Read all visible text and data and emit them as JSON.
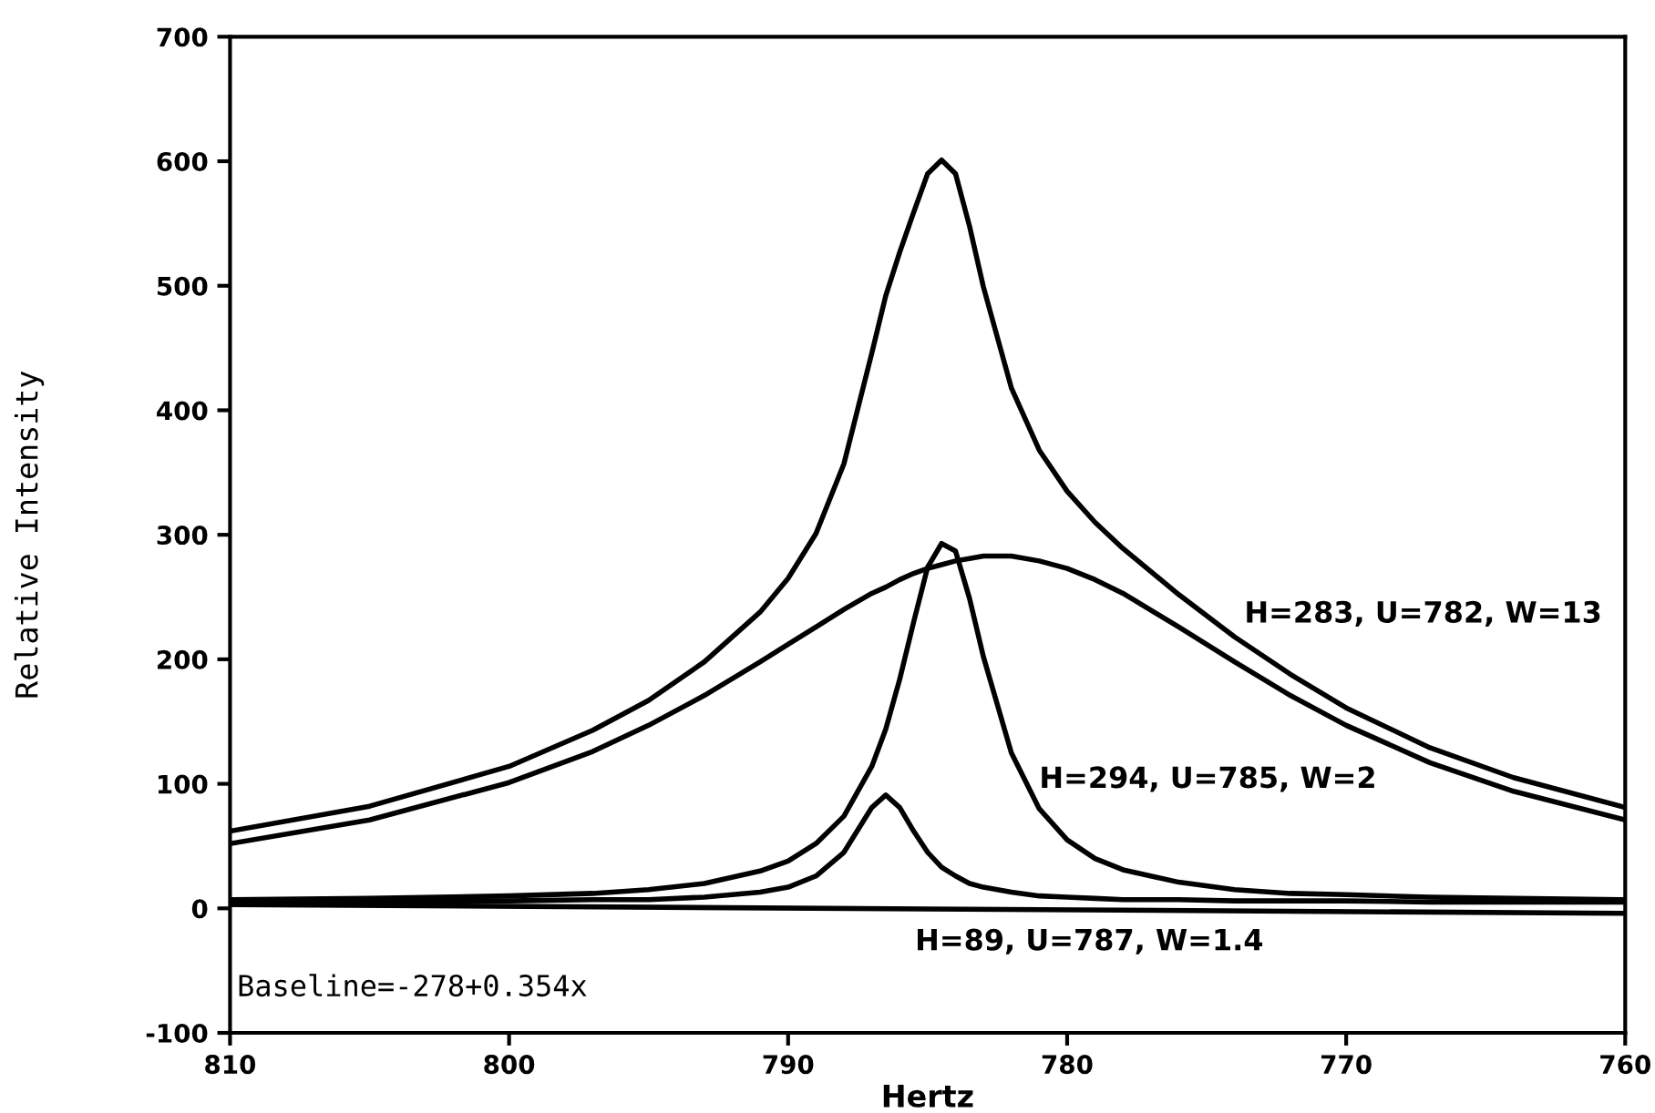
{
  "chart_data": {
    "type": "line",
    "xlabel": "Hertz",
    "ylabel": "Relative Intensity",
    "x": [
      810,
      805,
      800,
      797,
      795,
      793,
      791,
      790,
      789,
      788,
      787,
      786.5,
      786,
      785.5,
      785,
      784.5,
      784,
      783.5,
      783,
      782,
      781,
      780,
      779,
      778,
      776,
      774,
      772,
      770,
      767,
      764,
      760
    ],
    "series": [
      {
        "color": "#000000",
        "values": [
          62,
          82,
          114,
          143,
          167,
          198,
          238,
          265,
          301,
          357,
          446,
          492,
          527,
          559,
          590,
          601,
          590,
          548,
          499,
          418,
          368,
          335,
          310,
          289,
          252,
          218,
          188,
          161,
          129,
          105,
          81
        ]
      },
      {
        "color": "#000000",
        "values": [
          52,
          71,
          101,
          126,
          147,
          171,
          198,
          212,
          226,
          240,
          253,
          258,
          264,
          269,
          273,
          276,
          279,
          281,
          283,
          283,
          279,
          273,
          264,
          253,
          226,
          198,
          171,
          147,
          117,
          94,
          71
        ]
      },
      {
        "color": "#000000",
        "values": [
          7,
          8,
          10,
          12,
          15,
          20,
          30,
          38,
          52,
          74,
          114,
          144,
          184,
          230,
          274,
          293,
          287,
          249,
          202,
          125,
          80,
          55,
          40,
          31,
          21,
          15,
          12,
          11,
          9,
          8,
          7
        ]
      },
      {
        "color": "#000000",
        "values": [
          5,
          6,
          6,
          7,
          7,
          9,
          13,
          17,
          26,
          45,
          81,
          91,
          81,
          62,
          45,
          33,
          26,
          20,
          17,
          13,
          10,
          9,
          8,
          7,
          7,
          6,
          6,
          6,
          5,
          5,
          5
        ]
      },
      {
        "color": "#000000",
        "x": [
          810,
          760
        ],
        "values": [
          3,
          -4
        ]
      }
    ],
    "xlim": [
      810,
      760
    ],
    "xticks": [
      810,
      800,
      790,
      780,
      770,
      760
    ],
    "ylim": [
      -100,
      700
    ],
    "yticks": [
      -100,
      0,
      100,
      200,
      300,
      400,
      500,
      600,
      700
    ],
    "grid": false,
    "legend": false,
    "marker": "none",
    "line_style": "solid",
    "annotations": [
      "H=283, U=782, W=13",
      "H=294, U=785, W=2",
      "H=89, U=787, W=1.4",
      "Baseline=-278+0.354x"
    ]
  }
}
